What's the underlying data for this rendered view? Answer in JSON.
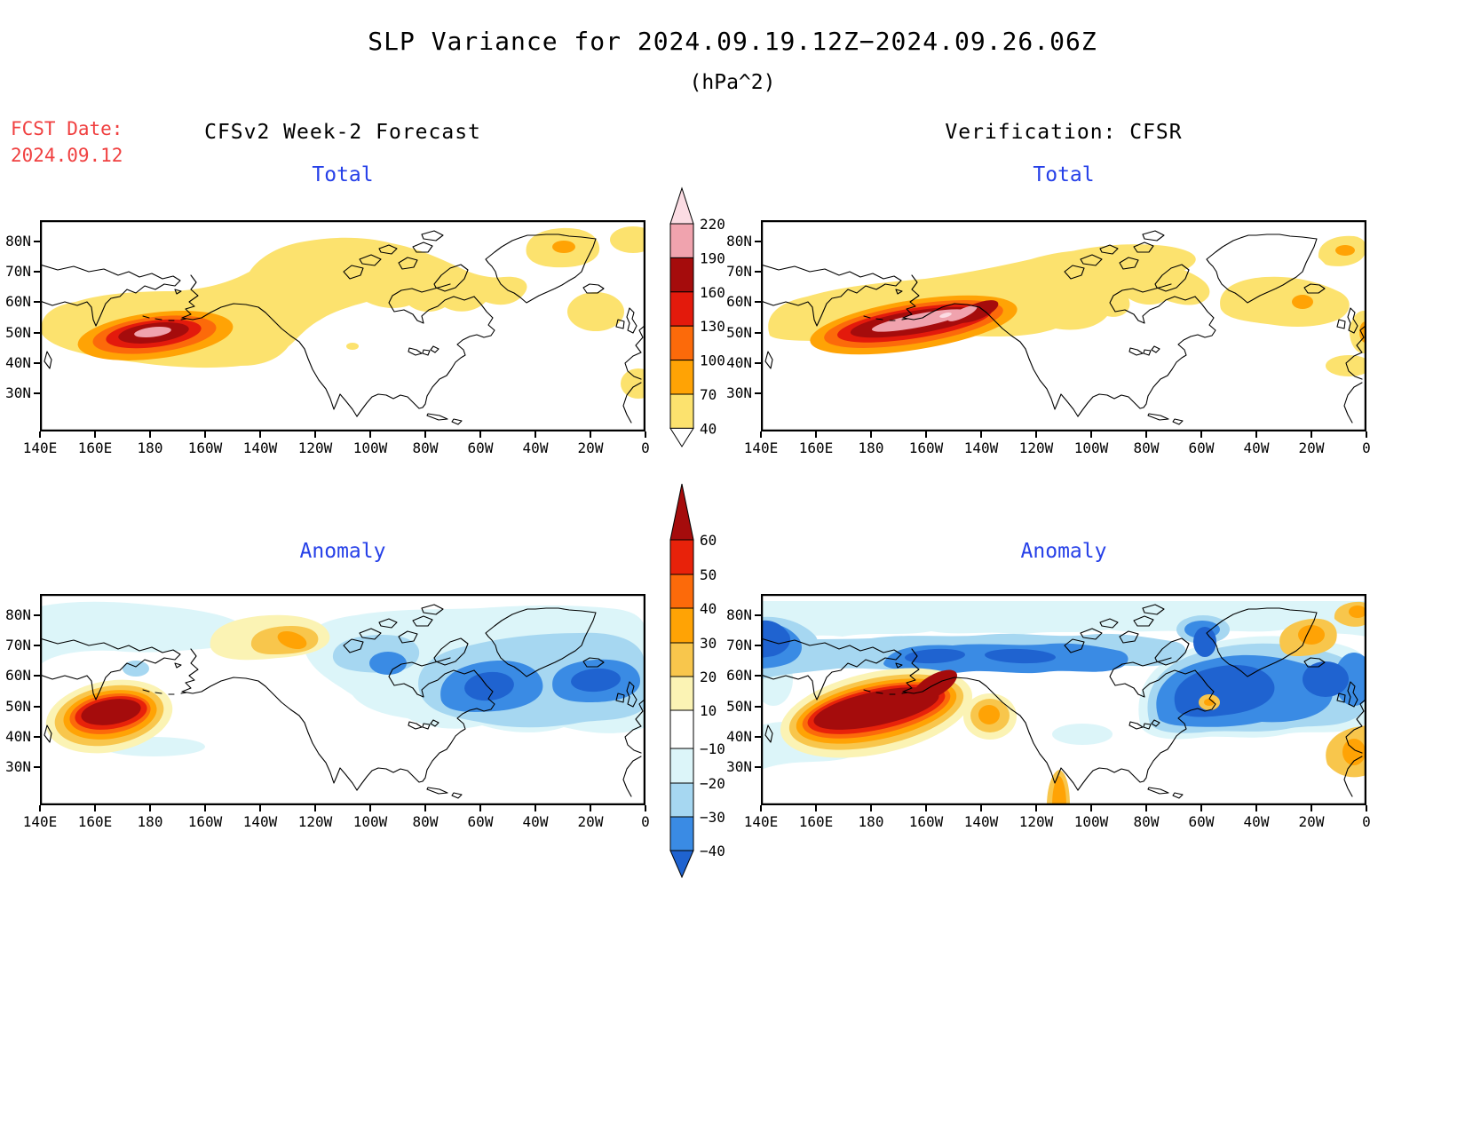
{
  "title": "SLP Variance for 2024.09.19.12Z−2024.09.26.06Z",
  "subtitle": "(hPa^2)",
  "fcst": {
    "label": "FCST Date:",
    "value": "2024.09.12"
  },
  "headers": {
    "left": "CFSv2 Week-2 Forecast",
    "right": "Verification: CFSR"
  },
  "panels": [
    {
      "title": "Total"
    },
    {
      "title": "Total"
    },
    {
      "title": "Anomaly"
    },
    {
      "title": "Anomaly"
    }
  ],
  "axes": {
    "lon": [
      "140E",
      "160E",
      "180",
      "160W",
      "140W",
      "120W",
      "100W",
      "80W",
      "60W",
      "40W",
      "20W",
      "0"
    ],
    "lat": [
      "80N",
      "70N",
      "60N",
      "50N",
      "40N",
      "30N"
    ]
  },
  "colors": {
    "panel_title": "#2640e8",
    "fcst_text": "#f04040",
    "text": "#000000",
    "total_palette": [
      "#fce26e",
      "#ffa305",
      "#fc6a0a",
      "#e31a0c",
      "#a50c0c",
      "#f0a3ae",
      "#fbdce3"
    ],
    "anomaly_warm_palette": [
      "#fbf3b4",
      "#f8c64c",
      "#ffa305",
      "#fc6a0a",
      "#e8220a",
      "#a50c0c"
    ],
    "anomaly_cold_palette": [
      "#dcf5f9",
      "#a6d7f1",
      "#3a8be4",
      "#1f63d0"
    ]
  },
  "colorbars": {
    "total": {
      "levels": [
        "220",
        "190",
        "160",
        "130",
        "100",
        "70",
        "40"
      ],
      "segment_colors_top_to_bottom": [
        "#fbdce3",
        "#f0a3ae",
        "#a50c0c",
        "#e31a0c",
        "#fc6a0a",
        "#ffa305",
        "#fce26e"
      ]
    },
    "anomaly": {
      "levels": [
        "60",
        "50",
        "40",
        "30",
        "20",
        "10",
        "−10",
        "−20",
        "−30",
        "−40"
      ],
      "segment_colors_top_to_bottom": [
        "#a50c0c",
        "#e8220a",
        "#fc6a0a",
        "#ffa305",
        "#f8c64c",
        "#fbf3b4",
        "#ffffff",
        "#dcf5f9",
        "#a6d7f1",
        "#3a8be4",
        "#1f63d0"
      ]
    }
  },
  "chart_data": {
    "type": "heatmap",
    "variable": "SLP Variance",
    "units": "hPa^2",
    "valid_period": "2024.09.19.12Z−2024.09.26.06Z",
    "forecast_initialized": "2024.09.12",
    "grid": {
      "lon_ticks": [
        "140E",
        "160E",
        "180",
        "160W",
        "140W",
        "120W",
        "100W",
        "80W",
        "60W",
        "40W",
        "20W",
        "0"
      ],
      "lat_ticks": [
        "80N",
        "70N",
        "60N",
        "50N",
        "40N",
        "30N"
      ]
    },
    "total_contour_levels_hPa2": [
      40,
      70,
      100,
      130,
      160,
      190,
      220
    ],
    "anomaly_contour_levels_hPa2": [
      -40,
      -30,
      -20,
      -10,
      10,
      20,
      30,
      40,
      50,
      60
    ],
    "panels": [
      {
        "row": "Total",
        "column": "CFSv2 Week-2 Forecast",
        "notable_features": [
          "Maximum >220 hPa^2 (pink core) centered near 50N, 180 over the central North Pacific",
          "40-70 hPa^2 band across Alaska, the Canadian Arctic, Labrador Sea and Greenland",
          "Local 70-100 hPa^2 center over central Greenland"
        ]
      },
      {
        "row": "Total",
        "column": "Verification: CFSR",
        "notable_features": [
          "Elongated maximum >190-220 hPa^2 stretching from ~45N,160E to ~55N,145W",
          "40-100 hPa^2 patches over eastern Canada, east of Greenland and near the prime meridian"
        ]
      },
      {
        "row": "Anomaly",
        "column": "CFSv2 Week-2 Forecast",
        "notable_features": [
          "Positive anomaly >60 hPa^2 near 50N,175E in the western North Pacific",
          "Positive anomalies 10-40 hPa^2 over the Canadian Arctic Archipelago",
          "Negative anomalies < -40 hPa^2 over eastern Canada/Quebec and the North Atlantic near Iceland"
        ]
      },
      {
        "row": "Anomaly",
        "column": "Verification: CFSR",
        "notable_features": [
          "Large positive anomaly >60 hPa^2 across the western/central North Pacific, 40-55N",
          "Broad negative anomalies < -40 hPa^2 from the Arctic coast across eastern Canada, Labrador Sea and North Atlantic",
          "Smaller positive anomalies near the North American west coast, east Greenland, and Iberia/NW Africa"
        ]
      }
    ]
  }
}
